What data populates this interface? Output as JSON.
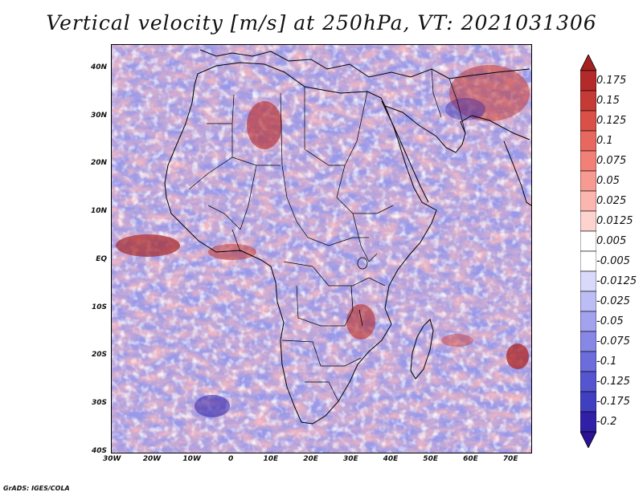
{
  "title": "Vertical velocity [m/s] at 250hPa, VT: 2021031306",
  "credit": "GrADS: IGES/COLA",
  "map": {
    "lon_range": [
      -30,
      75
    ],
    "lat_range": [
      -40,
      45
    ],
    "lon_ticks": [
      {
        "value": -30,
        "label": "30W"
      },
      {
        "value": -20,
        "label": "20W"
      },
      {
        "value": -10,
        "label": "10W"
      },
      {
        "value": 0,
        "label": "0"
      },
      {
        "value": 10,
        "label": "10E"
      },
      {
        "value": 20,
        "label": "20E"
      },
      {
        "value": 30,
        "label": "30E"
      },
      {
        "value": 40,
        "label": "40E"
      },
      {
        "value": 50,
        "label": "50E"
      },
      {
        "value": 60,
        "label": "60E"
      },
      {
        "value": 70,
        "label": "70E"
      }
    ],
    "lat_ticks": [
      {
        "value": 40,
        "label": "40N"
      },
      {
        "value": 30,
        "label": "30N"
      },
      {
        "value": 20,
        "label": "20N"
      },
      {
        "value": 10,
        "label": "10N"
      },
      {
        "value": 0,
        "label": "EQ"
      },
      {
        "value": -10,
        "label": "10S"
      },
      {
        "value": -20,
        "label": "20S"
      },
      {
        "value": -30,
        "label": "30S"
      },
      {
        "value": -40,
        "label": "40S"
      }
    ]
  },
  "colorbar": {
    "upper_arrow_color": "#a4221f",
    "lower_arrow_color": "#2c1294",
    "segments": [
      {
        "label": "0.175",
        "color": "#b42a2a"
      },
      {
        "label": "0.15",
        "color": "#c63a36"
      },
      {
        "label": "0.125",
        "color": "#d85048"
      },
      {
        "label": "0.1",
        "color": "#e8675e"
      },
      {
        "label": "0.075",
        "color": "#f28077"
      },
      {
        "label": "0.05",
        "color": "#f79a92"
      },
      {
        "label": "0.025",
        "color": "#fbb6b0"
      },
      {
        "label": "0.0125",
        "color": "#fdd3cf"
      },
      {
        "label": "0.005",
        "color": "#ffffff"
      },
      {
        "label": "-0.005",
        "color": "#ffffff"
      },
      {
        "label": "-0.0125",
        "color": "#d9d9fb"
      },
      {
        "label": "-0.025",
        "color": "#bdbdf5"
      },
      {
        "label": "-0.05",
        "color": "#a2a2ee"
      },
      {
        "label": "-0.075",
        "color": "#8787e6"
      },
      {
        "label": "-0.1",
        "color": "#6c6cdc"
      },
      {
        "label": "-0.125",
        "color": "#5555cf"
      },
      {
        "label": "-0.175",
        "color": "#3f3fc0"
      },
      {
        "label": "-0.2",
        "color": "#3020a8"
      }
    ]
  }
}
